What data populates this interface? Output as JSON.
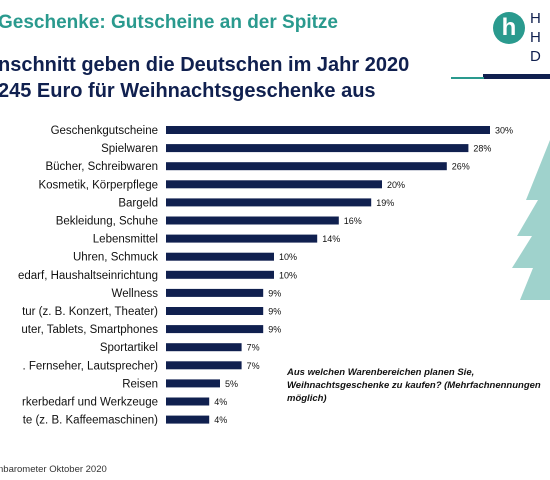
{
  "header": {
    "title": "Geschenke: Gutscheine an der Spitze",
    "subtitle_line1": "nschnitt geben die Deutschen im Jahr 2020",
    "subtitle_line2": "245 Euro für Weihnachtsgeschenke aus"
  },
  "logo": {
    "badge_letter": "h",
    "letters": [
      "H",
      "H",
      "D"
    ],
    "color_primary": "#2a9a8e",
    "color_secondary": "#10204f"
  },
  "question_text": "Aus welchen Warenbereichen planen Sie, Weihnachtsgeschenke zu kaufen? (Mehrfachnennungen möglich)",
  "source_text": "nbarometer Oktober 2020",
  "chart_data": {
    "type": "bar",
    "orientation": "horizontal",
    "title": "",
    "xlabel": "",
    "ylabel": "",
    "value_suffix": "%",
    "xlim": [
      0,
      30
    ],
    "bar_color": "#10204f",
    "categories": [
      "Geschenkgutscheine",
      "Spielwaren",
      "Bücher, Schreibwaren",
      "Kosmetik, Körperpflege",
      "Bargeld",
      "Bekleidung, Schuhe",
      "Lebensmittel",
      "Uhren, Schmuck",
      "edarf, Haushaltseinrichtung",
      "Wellness",
      "tur (z. B. Konzert, Theater)",
      "uter, Tablets, Smartphones",
      "Sportartikel",
      ". Fernseher, Lautsprecher)",
      "Reisen",
      "rkerbedarf und Werkzeuge",
      "te (z. B. Kaffeemaschinen)"
    ],
    "values": [
      30,
      28,
      26,
      20,
      19,
      16,
      14,
      10,
      10,
      9,
      9,
      9,
      7,
      7,
      5,
      4,
      4
    ]
  }
}
